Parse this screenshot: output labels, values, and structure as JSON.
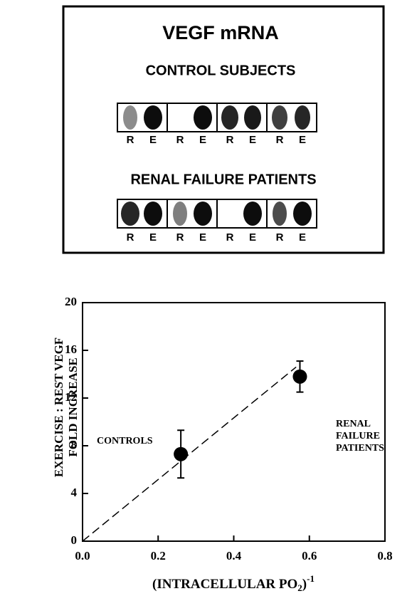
{
  "panel": {
    "title": "VEGF mRNA",
    "rows": [
      {
        "label": "CONTROL SUBJECTS",
        "lanes": [
          "R",
          "E",
          "R",
          "E",
          "R",
          "E",
          "R",
          "E"
        ]
      },
      {
        "label": "RENAL FAILURE PATIENTS",
        "lanes": [
          "R",
          "E",
          "R",
          "E",
          "R",
          "E",
          "R",
          "E"
        ]
      }
    ]
  },
  "chart_data": {
    "type": "scatter",
    "xlabel": {
      "main": "(INTRACELLULAR PO",
      "sub": "2",
      "close": ")",
      "sup": "-1"
    },
    "ylabel": [
      "EXERCISE : REST VEGF",
      "FOLD INCREASE"
    ],
    "x": [
      0.26,
      0.575
    ],
    "values": [
      7.3,
      13.8
    ],
    "errors": [
      2.0,
      1.3
    ],
    "color": "#000000",
    "annotations": [
      [
        "CONTROLS"
      ],
      [
        "RENAL",
        "FAILURE",
        "PATIENTS"
      ]
    ],
    "fit_line": {
      "x": [
        0,
        0.565
      ],
      "y": [
        0,
        14.6
      ]
    },
    "xlim": [
      0,
      0.8
    ],
    "xticks": [
      {
        "value": 0,
        "label": "0.0"
      },
      0.2,
      0.4,
      0.6,
      0.8
    ],
    "ylim": [
      0,
      20
    ],
    "yticks": [
      0,
      4,
      8,
      12,
      16,
      20
    ]
  }
}
